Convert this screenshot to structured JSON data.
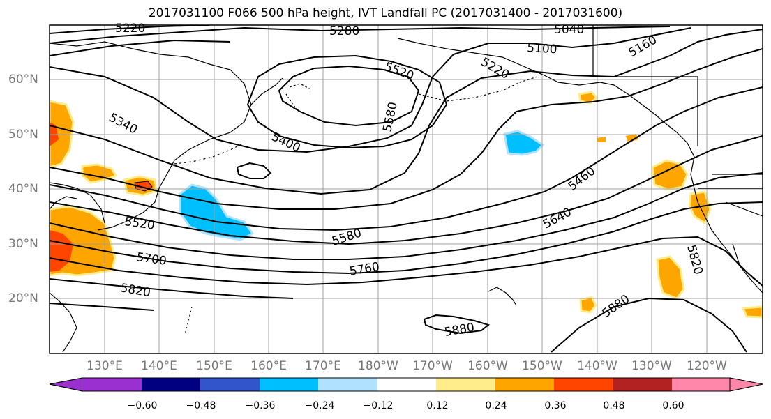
{
  "title": "2017031100 F066 500 hPa height, IVT Landfall PC (2017031400 - 2017031600)",
  "lat_labels": [
    "60°N",
    "50°N",
    "40°N",
    "30°N",
    "20°N"
  ],
  "lon_labels": [
    "130°E",
    "140°E",
    "150°E",
    "160°E",
    "170°E",
    "180°W",
    "170°W",
    "160°W",
    "150°W",
    "140°W",
    "130°W",
    "120°W"
  ],
  "contour_labels": [
    "5220",
    "5280",
    "5040",
    "5100",
    "5160",
    "5220",
    "5520",
    "5580",
    "5340",
    "5400",
    "5460",
    "5520",
    "5580",
    "5640",
    "5700",
    "5760",
    "5820",
    "5820",
    "5880",
    "5880"
  ],
  "colorbar": {
    "ticks": [
      "−0.60",
      "−0.48",
      "−0.36",
      "−0.24",
      "−0.12",
      "0.12",
      "0.24",
      "0.36",
      "0.48",
      "0.60"
    ],
    "colors": [
      "#9b30d0",
      "#000080",
      "#3355cc",
      "#00bfff",
      "#b0e2ff",
      "#ffffff",
      "#ffec8b",
      "#ffa500",
      "#ff4500",
      "#b22222",
      "#ff88aa"
    ]
  }
}
